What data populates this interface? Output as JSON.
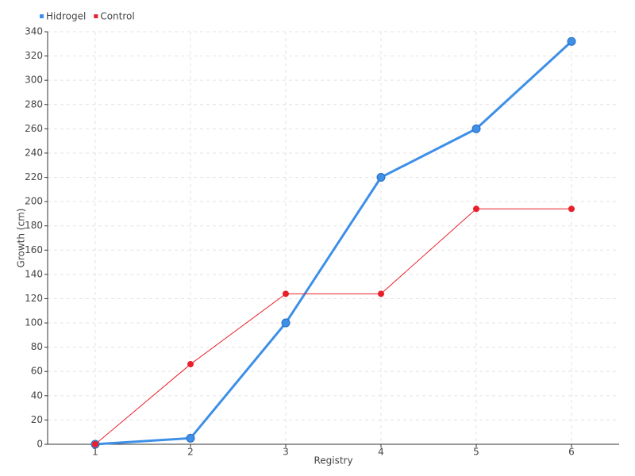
{
  "chart_data": {
    "type": "line",
    "x_label": "Registry",
    "y_label": "Growth (cm)",
    "x": [
      1,
      2,
      3,
      4,
      5,
      6
    ],
    "series": [
      {
        "name": "Hidrogel",
        "color": "#3d8fe8",
        "values": [
          0,
          5,
          100,
          220,
          260,
          332
        ]
      },
      {
        "name": "Control",
        "color": "#e8202a",
        "values": [
          0,
          66,
          124,
          124,
          194,
          194
        ]
      }
    ],
    "xlim": [
      0.5,
      6.5
    ],
    "xticks": [
      1,
      2,
      3,
      4,
      5,
      6
    ],
    "ylim": [
      0,
      340
    ],
    "yticks": [
      0,
      20,
      40,
      60,
      80,
      100,
      120,
      140,
      160,
      180,
      200,
      220,
      240,
      260,
      280,
      300,
      320,
      340
    ],
    "grid": true,
    "legend": "top-left"
  }
}
